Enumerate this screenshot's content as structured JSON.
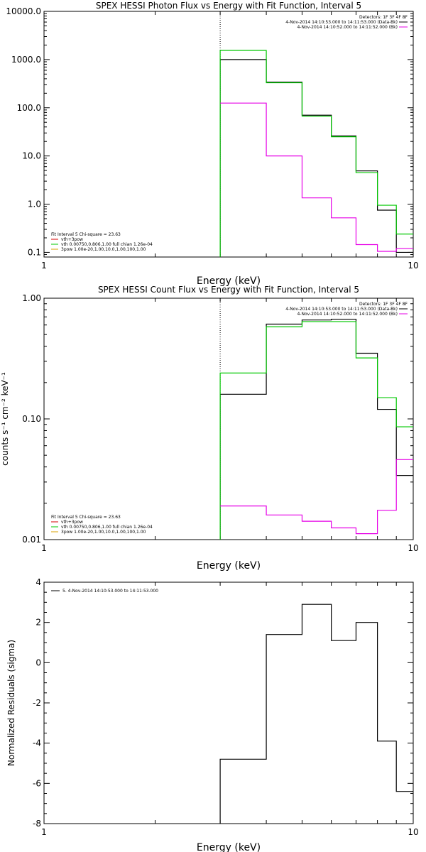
{
  "colors": {
    "black": "#000000",
    "green": "#00c800",
    "magenta": "#e600e6",
    "red": "#d40000",
    "orange": "#d8a000"
  },
  "chart_data": [
    {
      "type": "line",
      "title": "SPEX HESSI Photon Flux vs Energy with Fit Function, Interval 5",
      "xlabel": "Energy (keV)",
      "ylabel": "",
      "xscale": "log",
      "yscale": "log",
      "xlim": [
        1,
        10
      ],
      "ylim": [
        0.08,
        10000
      ],
      "xticks": [
        {
          "v": 1,
          "label": "1"
        },
        {
          "v": 10,
          "label": "10"
        }
      ],
      "yticks": [
        {
          "v": 0.1,
          "label": "0.1"
        },
        {
          "v": 1,
          "label": "1.0"
        },
        {
          "v": 10,
          "label": "10.0"
        },
        {
          "v": 100,
          "label": "100.0"
        },
        {
          "v": 1000,
          "label": "1000.0"
        },
        {
          "v": 10000,
          "label": "10000.0"
        }
      ],
      "vline": 3.0,
      "edges": [
        3.0,
        4.0,
        5.0,
        6.0,
        7.0,
        8.0,
        9.0,
        10.0
      ],
      "series": [
        {
          "color": "#000000",
          "values": [
            1000,
            340,
            70,
            26,
            4.9,
            0.75,
            0.1
          ],
          "drop_start": true
        },
        {
          "color": "#00c800",
          "values": [
            1550,
            330,
            67,
            25,
            4.5,
            0.95,
            0.24
          ],
          "drop_start": true
        },
        {
          "color": "#e600e6",
          "values": [
            125,
            10,
            1.35,
            0.52,
            0.145,
            0.105,
            0.12
          ],
          "drop_start": false
        }
      ],
      "legend_right": {
        "header": "Detectors: 1F 3F 4F 8F",
        "lines": [
          {
            "text": "4-Nov-2014 14:10:53.000 to 14:11:53.000 (Data-Bk)",
            "color": "#000000"
          },
          {
            "text": "4-Nov-2014 14:10:52.000 to 14:11:52.000 (Bk)",
            "color": "#e600e6"
          }
        ]
      },
      "legend_left": {
        "header": "Fit Interval  5    Chi-square = 23.63",
        "lines": [
          {
            "text": "vth+3pow",
            "color": "#d40000"
          },
          {
            "text": "vth 0.00750,0.806,1.00   full chian 1.26e-04",
            "color": "#00c800"
          },
          {
            "text": "3pow 1.00e-20,1.00,10.0,1.00,100,1.00",
            "color": "#d8a000"
          }
        ]
      }
    },
    {
      "type": "line",
      "title": "SPEX HESSI Count Flux vs Energy with Fit Function, Interval 5",
      "xlabel": "Energy (keV)",
      "ylabel": "counts s⁻¹ cm⁻² keV⁻¹",
      "xscale": "log",
      "yscale": "log",
      "xlim": [
        1,
        10
      ],
      "ylim": [
        0.01,
        1.0
      ],
      "xticks": [
        {
          "v": 1,
          "label": "1"
        },
        {
          "v": 10,
          "label": "10"
        }
      ],
      "yticks": [
        {
          "v": 0.01,
          "label": "0.01"
        },
        {
          "v": 0.1,
          "label": "0.10"
        },
        {
          "v": 1,
          "label": "1.00"
        }
      ],
      "vline": 3.0,
      "edges": [
        3.0,
        4.0,
        5.0,
        6.0,
        7.0,
        8.0,
        9.0,
        10.0
      ],
      "series": [
        {
          "color": "#000000",
          "values": [
            0.16,
            0.61,
            0.66,
            0.67,
            0.35,
            0.12,
            0.034
          ],
          "drop_start": true
        },
        {
          "color": "#00c800",
          "values": [
            0.24,
            0.58,
            0.64,
            0.64,
            0.32,
            0.15,
            0.086
          ],
          "drop_start": true
        },
        {
          "color": "#e600e6",
          "values": [
            0.019,
            0.016,
            0.0142,
            0.0125,
            0.0112,
            0.0175,
            0.046
          ],
          "drop_start": false
        }
      ],
      "legend_right": {
        "header": "Detectors: 1F 3F 4F 8F",
        "lines": [
          {
            "text": "4-Nov-2014 14:10:53.000 to 14:11:53.000 (Data-Bk)",
            "color": "#000000"
          },
          {
            "text": "4-Nov-2014 14:10:52.000 to 14:11:52.000 (Bk)",
            "color": "#e600e6"
          }
        ]
      },
      "legend_left": {
        "header": "Fit Interval  5    Chi-square = 23.63",
        "lines": [
          {
            "text": "vth+3pow",
            "color": "#d40000"
          },
          {
            "text": "vth 0.00750,0.806,1.00   full chian 1.26e-04",
            "color": "#00c800"
          },
          {
            "text": "3pow 1.00e-20,1.00,10.0,1.00,100,1.00",
            "color": "#d8a000"
          }
        ]
      }
    },
    {
      "type": "line",
      "title": "",
      "xlabel": "Energy (keV)",
      "ylabel": "Normalized Residuals (sigma)",
      "xscale": "log",
      "yscale": "linear",
      "xlim": [
        1,
        10
      ],
      "ylim": [
        -8,
        4
      ],
      "xticks": [
        {
          "v": 1,
          "label": "1"
        },
        {
          "v": 10,
          "label": "10"
        }
      ],
      "yticks": [
        {
          "v": -8,
          "label": "-8"
        },
        {
          "v": -6,
          "label": "-6"
        },
        {
          "v": -4,
          "label": "-4"
        },
        {
          "v": -2,
          "label": "-2"
        },
        {
          "v": 0,
          "label": "0"
        },
        {
          "v": 2,
          "label": "2"
        },
        {
          "v": 4,
          "label": "4"
        }
      ],
      "vline": null,
      "edges": [
        3.0,
        4.0,
        5.0,
        6.0,
        7.0,
        8.0,
        9.0,
        10.0
      ],
      "series": [
        {
          "color": "#000000",
          "values": [
            -4.8,
            1.4,
            2.9,
            1.1,
            2.0,
            -3.9,
            -6.4
          ],
          "drop_start": true
        }
      ],
      "legend_top": {
        "text": "5.  4-Nov-2014 14:10:53.000 to 14:11:53.000",
        "color": "#000000"
      }
    }
  ]
}
